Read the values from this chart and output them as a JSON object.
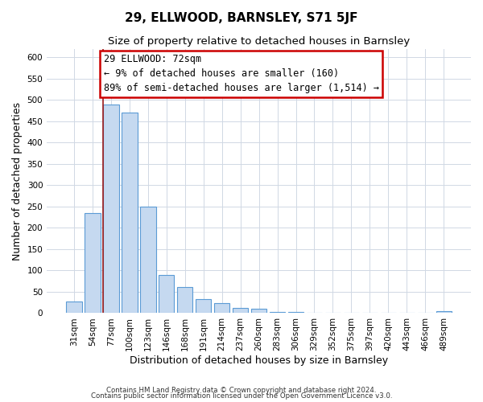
{
  "title": "29, ELLWOOD, BARNSLEY, S71 5JF",
  "subtitle": "Size of property relative to detached houses in Barnsley",
  "xlabel": "Distribution of detached houses by size in Barnsley",
  "ylabel": "Number of detached properties",
  "bar_labels": [
    "31sqm",
    "54sqm",
    "77sqm",
    "100sqm",
    "123sqm",
    "146sqm",
    "168sqm",
    "191sqm",
    "214sqm",
    "237sqm",
    "260sqm",
    "283sqm",
    "306sqm",
    "329sqm",
    "352sqm",
    "375sqm",
    "397sqm",
    "420sqm",
    "443sqm",
    "466sqm",
    "489sqm"
  ],
  "bar_values": [
    27,
    235,
    490,
    470,
    250,
    90,
    62,
    33,
    24,
    13,
    11,
    3,
    2,
    1,
    1,
    1,
    1,
    0,
    0,
    0,
    4
  ],
  "bar_color": "#c5d9f0",
  "bar_edge_color": "#5b9bd5",
  "highlight_index": 2,
  "highlight_color": "#9b1a1a",
  "annotation_title": "29 ELLWOOD: 72sqm",
  "annotation_line1": "← 9% of detached houses are smaller (160)",
  "annotation_line2": "89% of semi-detached houses are larger (1,514) →",
  "ylim": [
    0,
    620
  ],
  "yticks": [
    0,
    50,
    100,
    150,
    200,
    250,
    300,
    350,
    400,
    450,
    500,
    550,
    600
  ],
  "footnote1": "Contains HM Land Registry data © Crown copyright and database right 2024.",
  "footnote2": "Contains public sector information licensed under the Open Government Licence v3.0.",
  "background_color": "#ffffff",
  "grid_color": "#d0d8e4",
  "title_fontsize": 11,
  "subtitle_fontsize": 9.5,
  "axis_label_fontsize": 9,
  "tick_fontsize": 7.5,
  "annotation_box_color": "#ffffff",
  "annotation_box_edge": "#cc0000",
  "annotation_fontsize": 8.5
}
